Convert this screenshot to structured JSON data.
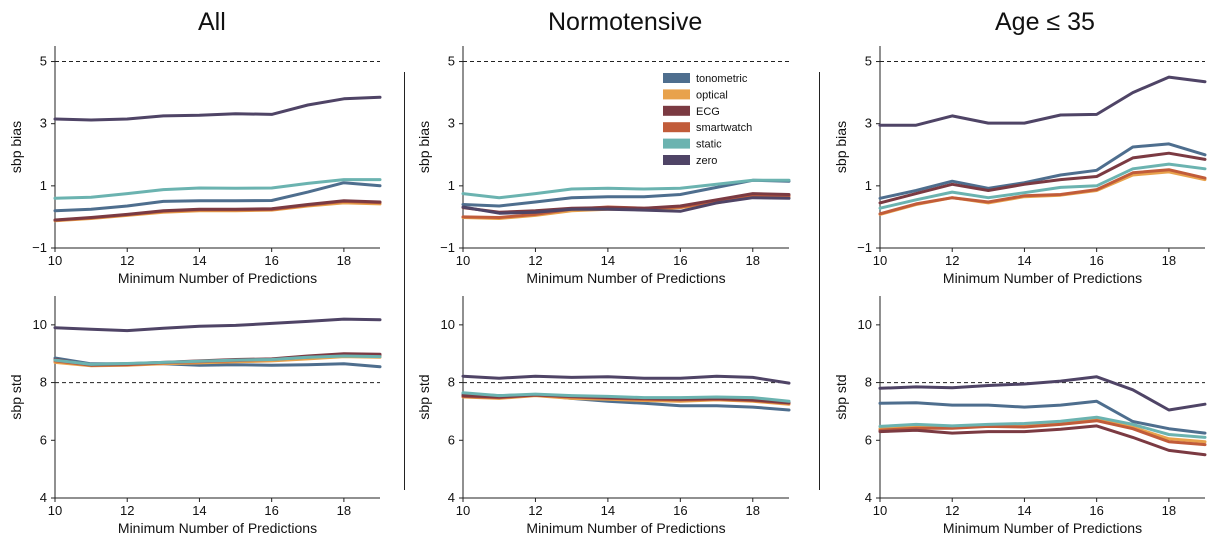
{
  "columns": [
    {
      "title": "All"
    },
    {
      "title": "Normotensive"
    },
    {
      "title": "Age ≤ 35"
    }
  ],
  "legend": [
    {
      "name": "tonometric",
      "color": "#4e6e8e"
    },
    {
      "name": "optical",
      "color": "#e8a24c"
    },
    {
      "name": "ECG",
      "color": "#7b3a42"
    },
    {
      "name": "smartwatch",
      "color": "#c15c3a"
    },
    {
      "name": "static",
      "color": "#6bb3b0"
    },
    {
      "name": "zero",
      "color": "#4f4466"
    }
  ],
  "chart_data": [
    {
      "type": "line",
      "column": "All",
      "row": "bias",
      "xlabel": "Minimum Number of Predictions",
      "ylabel": "sbp bias",
      "xlim": [
        10,
        19
      ],
      "ylim": [
        -1,
        5.5
      ],
      "xticks": [
        10,
        12,
        14,
        16,
        18
      ],
      "yticks": [
        -1,
        1,
        3,
        5
      ],
      "reference_line": 5,
      "x": [
        10,
        11,
        12,
        13,
        14,
        15,
        16,
        17,
        18,
        19
      ],
      "series": [
        {
          "name": "tonometric",
          "values": [
            0.2,
            0.25,
            0.35,
            0.5,
            0.52,
            0.52,
            0.53,
            0.8,
            1.1,
            1.0
          ]
        },
        {
          "name": "optical",
          "values": [
            -0.12,
            -0.05,
            0.05,
            0.15,
            0.2,
            0.2,
            0.22,
            0.35,
            0.45,
            0.42
          ]
        },
        {
          "name": "ECG",
          "values": [
            -0.1,
            -0.02,
            0.08,
            0.2,
            0.25,
            0.25,
            0.26,
            0.4,
            0.52,
            0.48
          ]
        },
        {
          "name": "smartwatch",
          "values": [
            -0.11,
            -0.03,
            0.07,
            0.18,
            0.23,
            0.23,
            0.24,
            0.38,
            0.5,
            0.46
          ]
        },
        {
          "name": "static",
          "values": [
            0.6,
            0.63,
            0.75,
            0.88,
            0.93,
            0.92,
            0.93,
            1.08,
            1.2,
            1.2
          ]
        },
        {
          "name": "zero",
          "values": [
            3.15,
            3.12,
            3.15,
            3.25,
            3.27,
            3.32,
            3.3,
            3.6,
            3.8,
            3.85
          ]
        }
      ]
    },
    {
      "type": "line",
      "column": "Normotensive",
      "row": "bias",
      "xlabel": "Minimum Number of Predictions",
      "ylabel": "sbp bias",
      "xlim": [
        10,
        19
      ],
      "ylim": [
        -1,
        5.5
      ],
      "xticks": [
        10,
        12,
        14,
        16,
        18
      ],
      "yticks": [
        -1,
        1,
        3,
        5
      ],
      "reference_line": 5,
      "x": [
        10,
        11,
        12,
        13,
        14,
        15,
        16,
        17,
        18,
        19
      ],
      "series": [
        {
          "name": "tonometric",
          "values": [
            0.4,
            0.35,
            0.48,
            0.62,
            0.65,
            0.65,
            0.72,
            0.95,
            1.18,
            1.15
          ]
        },
        {
          "name": "optical",
          "values": [
            -0.02,
            -0.05,
            0.05,
            0.2,
            0.25,
            0.25,
            0.3,
            0.45,
            0.65,
            0.62
          ]
        },
        {
          "name": "ECG",
          "values": [
            0.3,
            0.15,
            0.2,
            0.28,
            0.3,
            0.28,
            0.35,
            0.55,
            0.75,
            0.72
          ]
        },
        {
          "name": "smartwatch",
          "values": [
            0.0,
            -0.02,
            0.08,
            0.25,
            0.32,
            0.28,
            0.32,
            0.5,
            0.7,
            0.68
          ]
        },
        {
          "name": "static",
          "values": [
            0.75,
            0.62,
            0.75,
            0.9,
            0.92,
            0.9,
            0.92,
            1.05,
            1.18,
            1.18
          ]
        },
        {
          "name": "zero",
          "values": [
            0.32,
            0.12,
            0.15,
            0.25,
            0.25,
            0.22,
            0.18,
            0.45,
            0.62,
            0.6
          ]
        }
      ]
    },
    {
      "type": "line",
      "column": "Age ≤ 35",
      "row": "bias",
      "xlabel": "Minimum Number of Predictions",
      "ylabel": "sbp bias",
      "xlim": [
        10,
        19
      ],
      "ylim": [
        -1,
        5.5
      ],
      "xticks": [
        10,
        12,
        14,
        16,
        18
      ],
      "yticks": [
        -1,
        1,
        3,
        5
      ],
      "reference_line": 5,
      "x": [
        10,
        11,
        12,
        13,
        14,
        15,
        16,
        17,
        18,
        19
      ],
      "series": [
        {
          "name": "tonometric",
          "values": [
            0.6,
            0.85,
            1.15,
            0.92,
            1.1,
            1.35,
            1.5,
            2.25,
            2.35,
            2.0
          ]
        },
        {
          "name": "optical",
          "values": [
            0.08,
            0.4,
            0.62,
            0.45,
            0.65,
            0.7,
            0.85,
            1.35,
            1.45,
            1.2
          ]
        },
        {
          "name": "ECG",
          "values": [
            0.45,
            0.75,
            1.05,
            0.85,
            1.05,
            1.2,
            1.3,
            1.9,
            2.05,
            1.85
          ]
        },
        {
          "name": "smartwatch",
          "values": [
            0.1,
            0.42,
            0.62,
            0.48,
            0.68,
            0.72,
            0.88,
            1.42,
            1.52,
            1.25
          ]
        },
        {
          "name": "static",
          "values": [
            0.28,
            0.55,
            0.8,
            0.62,
            0.78,
            0.95,
            1.0,
            1.55,
            1.7,
            1.55
          ]
        },
        {
          "name": "zero",
          "values": [
            2.95,
            2.95,
            3.25,
            3.02,
            3.02,
            3.28,
            3.3,
            4.0,
            4.5,
            4.35
          ]
        }
      ]
    },
    {
      "type": "line",
      "column": "All",
      "row": "std",
      "xlabel": "Minimum Number of Predictions",
      "ylabel": "sbp std",
      "xlim": [
        10,
        19
      ],
      "ylim": [
        4,
        11
      ],
      "xticks": [
        10,
        12,
        14,
        16,
        18
      ],
      "yticks": [
        4,
        6,
        8,
        10
      ],
      "reference_line": 8,
      "x": [
        10,
        11,
        12,
        13,
        14,
        15,
        16,
        17,
        18,
        19
      ],
      "series": [
        {
          "name": "tonometric",
          "values": [
            8.85,
            8.65,
            8.65,
            8.65,
            8.6,
            8.62,
            8.6,
            8.62,
            8.65,
            8.55
          ]
        },
        {
          "name": "optical",
          "values": [
            8.7,
            8.58,
            8.6,
            8.65,
            8.68,
            8.72,
            8.75,
            8.82,
            8.9,
            8.88
          ]
        },
        {
          "name": "ECG",
          "values": [
            8.8,
            8.62,
            8.65,
            8.7,
            8.75,
            8.8,
            8.82,
            8.92,
            9.0,
            8.98
          ]
        },
        {
          "name": "smartwatch",
          "values": [
            8.75,
            8.6,
            8.62,
            8.68,
            8.72,
            8.76,
            8.8,
            8.88,
            8.95,
            8.94
          ]
        },
        {
          "name": "static",
          "values": [
            8.78,
            8.63,
            8.66,
            8.7,
            8.74,
            8.78,
            8.8,
            8.88,
            8.92,
            8.9
          ]
        },
        {
          "name": "zero",
          "values": [
            9.9,
            9.85,
            9.8,
            9.88,
            9.95,
            9.98,
            10.05,
            10.12,
            10.2,
            10.18
          ]
        }
      ]
    },
    {
      "type": "line",
      "column": "Normotensive",
      "row": "std",
      "xlabel": "Minimum Number of Predictions",
      "ylabel": "sbp std",
      "xlim": [
        10,
        19
      ],
      "ylim": [
        4,
        11
      ],
      "xticks": [
        10,
        12,
        14,
        16,
        18
      ],
      "yticks": [
        4,
        6,
        8,
        10
      ],
      "reference_line": 8,
      "x": [
        10,
        11,
        12,
        13,
        14,
        15,
        16,
        17,
        18,
        19
      ],
      "series": [
        {
          "name": "tonometric",
          "values": [
            7.6,
            7.55,
            7.58,
            7.45,
            7.35,
            7.28,
            7.2,
            7.2,
            7.15,
            7.05
          ]
        },
        {
          "name": "optical",
          "values": [
            7.5,
            7.45,
            7.55,
            7.45,
            7.42,
            7.38,
            7.35,
            7.4,
            7.35,
            7.25
          ]
        },
        {
          "name": "ECG",
          "values": [
            7.55,
            7.5,
            7.58,
            7.52,
            7.48,
            7.45,
            7.42,
            7.45,
            7.4,
            7.3
          ]
        },
        {
          "name": "smartwatch",
          "values": [
            7.52,
            7.48,
            7.56,
            7.5,
            7.46,
            7.42,
            7.4,
            7.42,
            7.38,
            7.28
          ]
        },
        {
          "name": "static",
          "values": [
            7.65,
            7.55,
            7.6,
            7.55,
            7.52,
            7.48,
            7.48,
            7.5,
            7.48,
            7.35
          ]
        },
        {
          "name": "zero",
          "values": [
            8.22,
            8.15,
            8.22,
            8.18,
            8.2,
            8.15,
            8.15,
            8.22,
            8.18,
            7.98
          ]
        }
      ]
    },
    {
      "type": "line",
      "column": "Age ≤ 35",
      "row": "std",
      "xlabel": "Minimum Number of Predictions",
      "ylabel": "sbp std",
      "xlim": [
        10,
        19
      ],
      "ylim": [
        4,
        11
      ],
      "xticks": [
        10,
        12,
        14,
        16,
        18
      ],
      "yticks": [
        4,
        6,
        8,
        10
      ],
      "reference_line": 8,
      "x": [
        10,
        11,
        12,
        13,
        14,
        15,
        16,
        17,
        18,
        19
      ],
      "series": [
        {
          "name": "tonometric",
          "values": [
            7.28,
            7.3,
            7.22,
            7.22,
            7.15,
            7.22,
            7.35,
            6.65,
            6.4,
            6.25
          ]
        },
        {
          "name": "optical",
          "values": [
            6.4,
            6.45,
            6.45,
            6.5,
            6.5,
            6.6,
            6.72,
            6.45,
            6.05,
            5.95
          ]
        },
        {
          "name": "ECG",
          "values": [
            6.3,
            6.35,
            6.25,
            6.3,
            6.3,
            6.38,
            6.5,
            6.1,
            5.65,
            5.5
          ]
        },
        {
          "name": "smartwatch",
          "values": [
            6.35,
            6.42,
            6.42,
            6.48,
            6.46,
            6.55,
            6.68,
            6.4,
            5.95,
            5.85
          ]
        },
        {
          "name": "static",
          "values": [
            6.48,
            6.55,
            6.5,
            6.55,
            6.58,
            6.66,
            6.8,
            6.55,
            6.2,
            6.1
          ]
        },
        {
          "name": "zero",
          "values": [
            7.8,
            7.85,
            7.82,
            7.9,
            7.95,
            8.05,
            8.2,
            7.75,
            7.05,
            7.25
          ]
        }
      ]
    }
  ]
}
